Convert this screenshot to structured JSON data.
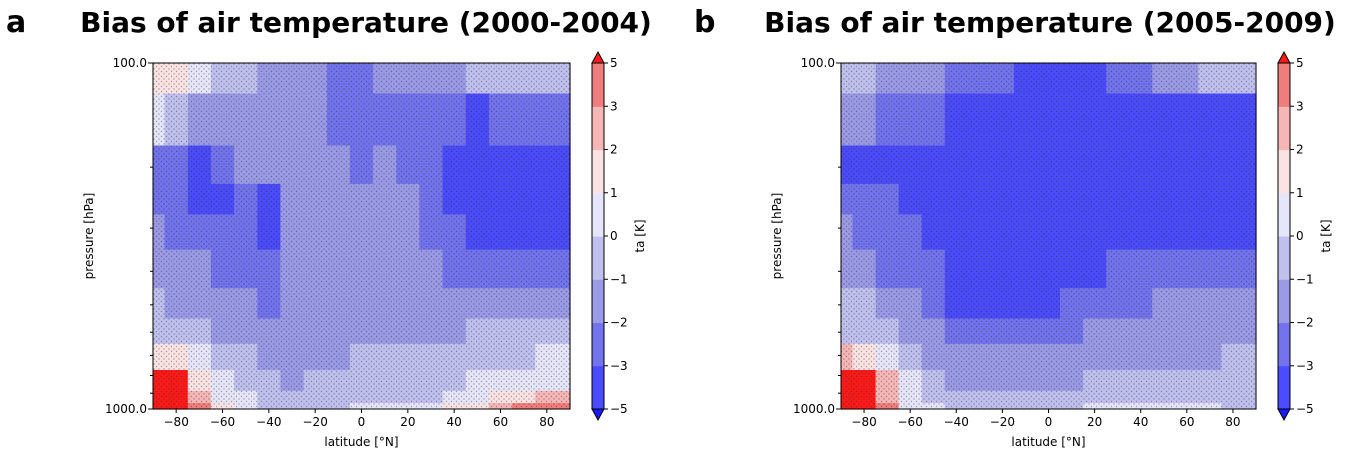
{
  "chart_data": [
    {
      "type": "heatmap",
      "panel_label": "a",
      "title": "Bias of air temperature (2000-2004)",
      "xlabel": "latitude [°N]",
      "ylabel": "pressure [hPa]",
      "xlim": [
        -90,
        90
      ],
      "ylim": [
        1000.0,
        100.0
      ],
      "y_scale": "log",
      "xticks": [
        "−80",
        "−60",
        "−40",
        "−20",
        "0",
        "20",
        "40",
        "60",
        "80"
      ],
      "xtick_values": [
        -80,
        -60,
        -40,
        -20,
        0,
        20,
        40,
        60,
        80
      ],
      "yticks": [
        "100.0",
        "1000.0"
      ],
      "ytick_values": [
        100,
        1000
      ],
      "colorbar": {
        "label": "ta [K]",
        "ticks": [
          "5",
          "3",
          "2",
          "1",
          "0",
          "−1",
          "−2",
          "−3",
          "−5"
        ],
        "levels": [
          -5,
          -3,
          -2,
          -1,
          0,
          1,
          2,
          3,
          5
        ],
        "colors": [
          "#1a1aff",
          "#4b4bff",
          "#7373ee",
          "#9a9ae6",
          "#c0c0ef",
          "#e6e6fa",
          "#fbe3e3",
          "#f6b6b6",
          "#f07d7d",
          "#ff1a1a"
        ],
        "extend": "both"
      },
      "stippling": "dotted hatching marks grid points where the bias is not significant",
      "lat": [
        -90,
        -80,
        -70,
        -60,
        -50,
        -40,
        -30,
        -20,
        -10,
        0,
        10,
        20,
        30,
        40,
        50,
        60,
        70,
        80,
        90
      ],
      "plev": [
        100,
        150,
        200,
        250,
        300,
        400,
        500,
        600,
        700,
        850,
        925,
        1000
      ],
      "values": [
        [
          1.6,
          1.4,
          0.2,
          -0.3,
          -0.6,
          -1.1,
          -1.5,
          -1.8,
          -2.1,
          -2.3,
          -2.0,
          -1.8,
          -1.5,
          -1.2,
          -1.0,
          -0.8,
          -0.4,
          -0.2,
          -0.2
        ],
        [
          0.1,
          -0.4,
          -1.1,
          -1.3,
          -1.2,
          -1.4,
          -1.6,
          -1.8,
          -2.2,
          -2.6,
          -2.2,
          -2.5,
          -2.6,
          -2.9,
          -3.1,
          -2.6,
          -2.3,
          -2.1,
          -2.2
        ],
        [
          -2.2,
          -2.6,
          -3.1,
          -2.7,
          -2.0,
          -1.8,
          -1.6,
          -1.7,
          -2.0,
          -2.2,
          -1.8,
          -2.4,
          -2.8,
          -3.2,
          -3.7,
          -3.9,
          -4.1,
          -4.2,
          -4.2
        ],
        [
          -2.4,
          -2.9,
          -3.3,
          -3.1,
          -2.3,
          -3.4,
          -1.4,
          -1.3,
          -1.7,
          -1.9,
          -1.4,
          -1.9,
          -2.7,
          -3.1,
          -3.7,
          -4.1,
          -4.4,
          -4.6,
          -4.6
        ],
        [
          -2.0,
          -2.3,
          -2.8,
          -2.6,
          -2.4,
          -3.2,
          -1.3,
          -1.2,
          -1.5,
          -1.8,
          -1.3,
          -1.7,
          -2.3,
          -2.7,
          -3.1,
          -3.4,
          -3.6,
          -3.7,
          -3.7
        ],
        [
          -1.4,
          -1.6,
          -1.9,
          -2.2,
          -2.3,
          -2.7,
          -1.6,
          -1.5,
          -1.7,
          -1.8,
          -1.8,
          -1.9,
          -2.0,
          -2.2,
          -2.3,
          -2.4,
          -2.4,
          -2.4,
          -2.4
        ],
        [
          -0.9,
          -1.1,
          -1.3,
          -1.6,
          -1.9,
          -2.3,
          -1.8,
          -1.7,
          -1.7,
          -1.8,
          -1.8,
          -1.8,
          -1.8,
          -1.7,
          -1.6,
          -1.5,
          -1.4,
          -1.3,
          -1.3
        ],
        [
          -0.3,
          -0.4,
          -0.7,
          -1.3,
          -1.6,
          -2.0,
          -1.6,
          -1.4,
          -1.3,
          -1.3,
          -1.3,
          -1.3,
          -1.2,
          -1.1,
          -1.0,
          -0.9,
          -0.8,
          -0.7,
          -0.7
        ],
        [
          1.9,
          1.6,
          0.4,
          -0.6,
          -0.9,
          -1.2,
          -1.3,
          -1.2,
          -1.1,
          -1.0,
          -1.0,
          -1.0,
          -0.9,
          -0.7,
          -0.6,
          -0.3,
          -0.1,
          0.2,
          0.2
        ],
        [
          5.4,
          5.2,
          1.6,
          0.2,
          -0.4,
          -0.9,
          -1.1,
          -1.0,
          -0.9,
          -0.8,
          -0.8,
          -0.7,
          -0.6,
          -0.3,
          0.0,
          0.3,
          0.6,
          0.9,
          0.9
        ],
        [
          5.5,
          5.5,
          2.0,
          0.5,
          0.0,
          -0.6,
          -0.8,
          -0.7,
          -0.5,
          -0.4,
          -0.4,
          -0.3,
          -0.1,
          0.2,
          0.6,
          1.0,
          1.6,
          2.1,
          2.1
        ],
        [
          5.5,
          5.5,
          3.0,
          1.0,
          0.4,
          -0.3,
          -0.4,
          -0.3,
          -0.1,
          0.1,
          0.2,
          0.3,
          0.6,
          1.2,
          1.8,
          2.4,
          3.1,
          3.6,
          3.6
        ]
      ]
    },
    {
      "type": "heatmap",
      "panel_label": "b",
      "title": "Bias of air temperature (2005-2009)",
      "xlabel": "latitude [°N]",
      "ylabel": "pressure [hPa]",
      "xlim": [
        -90,
        90
      ],
      "ylim": [
        1000.0,
        100.0
      ],
      "y_scale": "log",
      "xticks": [
        "−80",
        "−60",
        "−40",
        "−20",
        "0",
        "20",
        "40",
        "60",
        "80"
      ],
      "xtick_values": [
        -80,
        -60,
        -40,
        -20,
        0,
        20,
        40,
        60,
        80
      ],
      "yticks": [
        "100.0",
        "1000.0"
      ],
      "ytick_values": [
        100,
        1000
      ],
      "colorbar": {
        "label": "ta [K]",
        "ticks": [
          "5",
          "3",
          "2",
          "1",
          "0",
          "−1",
          "−2",
          "−3",
          "−5"
        ],
        "levels": [
          -5,
          -3,
          -2,
          -1,
          0,
          1,
          2,
          3,
          5
        ],
        "colors": [
          "#1a1aff",
          "#4b4bff",
          "#7373ee",
          "#9a9ae6",
          "#c0c0ef",
          "#e6e6fa",
          "#fbe3e3",
          "#f6b6b6",
          "#f07d7d",
          "#ff1a1a"
        ],
        "extend": "both"
      },
      "stippling": "dotted hatching marks grid points where the bias is not significant",
      "lat": [
        -90,
        -80,
        -70,
        -60,
        -50,
        -40,
        -30,
        -20,
        -10,
        0,
        10,
        20,
        30,
        40,
        50,
        60,
        70,
        80,
        90
      ],
      "plev": [
        100,
        150,
        200,
        250,
        300,
        400,
        500,
        600,
        700,
        850,
        925,
        1000
      ],
      "values": [
        [
          -0.6,
          -0.9,
          -1.4,
          -1.8,
          -2.0,
          -2.4,
          -2.6,
          -2.8,
          -3.2,
          -3.6,
          -3.8,
          -3.4,
          -3.0,
          -2.4,
          -1.6,
          -1.2,
          -1.0,
          -0.9,
          -0.9
        ],
        [
          -1.4,
          -1.8,
          -2.2,
          -2.4,
          -2.6,
          -3.1,
          -3.3,
          -3.5,
          -3.5,
          -3.4,
          -3.3,
          -3.2,
          -3.2,
          -3.2,
          -3.3,
          -3.1,
          -3.2,
          -3.3,
          -3.3
        ],
        [
          -3.1,
          -3.2,
          -3.3,
          -3.4,
          -3.5,
          -3.6,
          -3.7,
          -3.7,
          -3.6,
          -3.6,
          -3.5,
          -3.5,
          -3.5,
          -3.6,
          -3.8,
          -4.0,
          -4.2,
          -4.3,
          -4.3
        ],
        [
          -2.6,
          -2.8,
          -3.0,
          -3.3,
          -3.5,
          -3.6,
          -3.7,
          -3.7,
          -3.6,
          -3.6,
          -3.5,
          -3.5,
          -3.6,
          -3.7,
          -3.9,
          -4.1,
          -4.3,
          -4.4,
          -4.4
        ],
        [
          -2.0,
          -2.2,
          -2.6,
          -2.9,
          -3.2,
          -3.4,
          -3.5,
          -3.5,
          -3.4,
          -3.4,
          -3.3,
          -3.3,
          -3.4,
          -3.5,
          -3.6,
          -3.6,
          -3.6,
          -3.6,
          -3.6
        ],
        [
          -1.2,
          -1.6,
          -2.1,
          -2.6,
          -3.0,
          -3.3,
          -3.4,
          -3.4,
          -3.3,
          -3.3,
          -3.2,
          -3.1,
          -3.0,
          -2.9,
          -2.8,
          -2.6,
          -2.5,
          -2.4,
          -2.4
        ],
        [
          -0.6,
          -0.9,
          -1.2,
          -1.6,
          -2.6,
          -3.1,
          -3.2,
          -3.2,
          -3.1,
          -3.1,
          -2.9,
          -2.7,
          -2.4,
          -2.1,
          -1.9,
          -1.7,
          -1.6,
          -1.5,
          -1.5
        ],
        [
          -0.2,
          -0.5,
          -0.8,
          -1.2,
          -1.9,
          -2.5,
          -2.6,
          -2.6,
          -2.4,
          -2.3,
          -2.1,
          -1.9,
          -1.7,
          -1.5,
          -1.5,
          -1.4,
          -1.3,
          -1.2,
          -1.2
        ],
        [
          2.0,
          1.8,
          0.6,
          -0.6,
          -1.1,
          -1.8,
          -2.0,
          -1.9,
          -1.7,
          -1.6,
          -1.6,
          -1.5,
          -1.4,
          -1.3,
          -1.3,
          -1.2,
          -1.1,
          -1.0,
          -1.0
        ],
        [
          5.4,
          5.4,
          2.0,
          0.1,
          -0.4,
          -1.1,
          -1.3,
          -1.3,
          -1.2,
          -1.1,
          -1.1,
          -1.0,
          -1.0,
          -0.9,
          -0.9,
          -0.9,
          -0.8,
          -0.7,
          -0.7
        ],
        [
          5.5,
          5.5,
          2.6,
          0.4,
          -0.1,
          -0.6,
          -0.8,
          -0.8,
          -0.7,
          -0.6,
          -0.6,
          -0.5,
          -0.4,
          -0.2,
          -0.1,
          -0.2,
          -0.3,
          -0.3,
          -0.3
        ],
        [
          5.5,
          5.5,
          3.2,
          0.8,
          0.2,
          -0.3,
          -0.4,
          -0.5,
          -0.4,
          -0.3,
          -0.2,
          0.0,
          0.3,
          0.6,
          0.9,
          0.7,
          0.2,
          -0.2,
          -0.2
        ]
      ]
    }
  ]
}
